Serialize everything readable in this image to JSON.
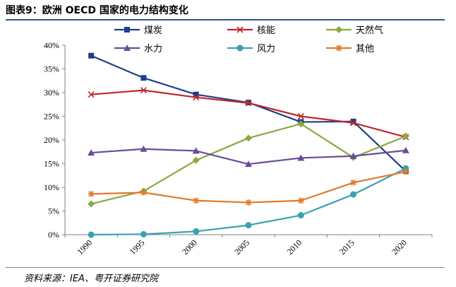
{
  "figure": {
    "title": "图表9：欧洲 OECD 国家的电力结构变化",
    "source": "资料来源：IEA、粤开证券研究院"
  },
  "chart_data": {
    "type": "line",
    "x": [
      "1990",
      "1995",
      "2000",
      "2005",
      "2010",
      "2015",
      "2020"
    ],
    "ylim": [
      0,
      40
    ],
    "yticks": [
      "0%",
      "5%",
      "10%",
      "15%",
      "20%",
      "25%",
      "30%",
      "35%",
      "40%"
    ],
    "grid": false,
    "legend_position": "top",
    "series": [
      {
        "name": "煤炭",
        "color": "#1f3d8a",
        "marker": "square",
        "values": [
          37.8,
          33.1,
          29.6,
          27.9,
          23.8,
          23.9,
          13.4
        ]
      },
      {
        "name": "核能",
        "color": "#c0282d",
        "marker": "x",
        "values": [
          29.6,
          30.5,
          29.0,
          27.8,
          25.0,
          23.6,
          20.6
        ]
      },
      {
        "name": "天然气",
        "color": "#8aa93f",
        "marker": "diamond",
        "values": [
          6.5,
          9.2,
          15.7,
          20.4,
          23.4,
          16.3,
          20.8
        ]
      },
      {
        "name": "水力",
        "color": "#6b4c9a",
        "marker": "triangle",
        "values": [
          17.3,
          18.1,
          17.7,
          14.9,
          16.2,
          16.6,
          17.8
        ]
      },
      {
        "name": "风力",
        "color": "#3aa1b0",
        "marker": "circle",
        "values": [
          0.0,
          0.1,
          0.7,
          2.0,
          4.1,
          8.5,
          14.0
        ]
      },
      {
        "name": "其他",
        "color": "#e07b2b",
        "marker": "star",
        "values": [
          8.6,
          8.9,
          7.2,
          6.8,
          7.2,
          11.0,
          13.3
        ]
      }
    ]
  }
}
